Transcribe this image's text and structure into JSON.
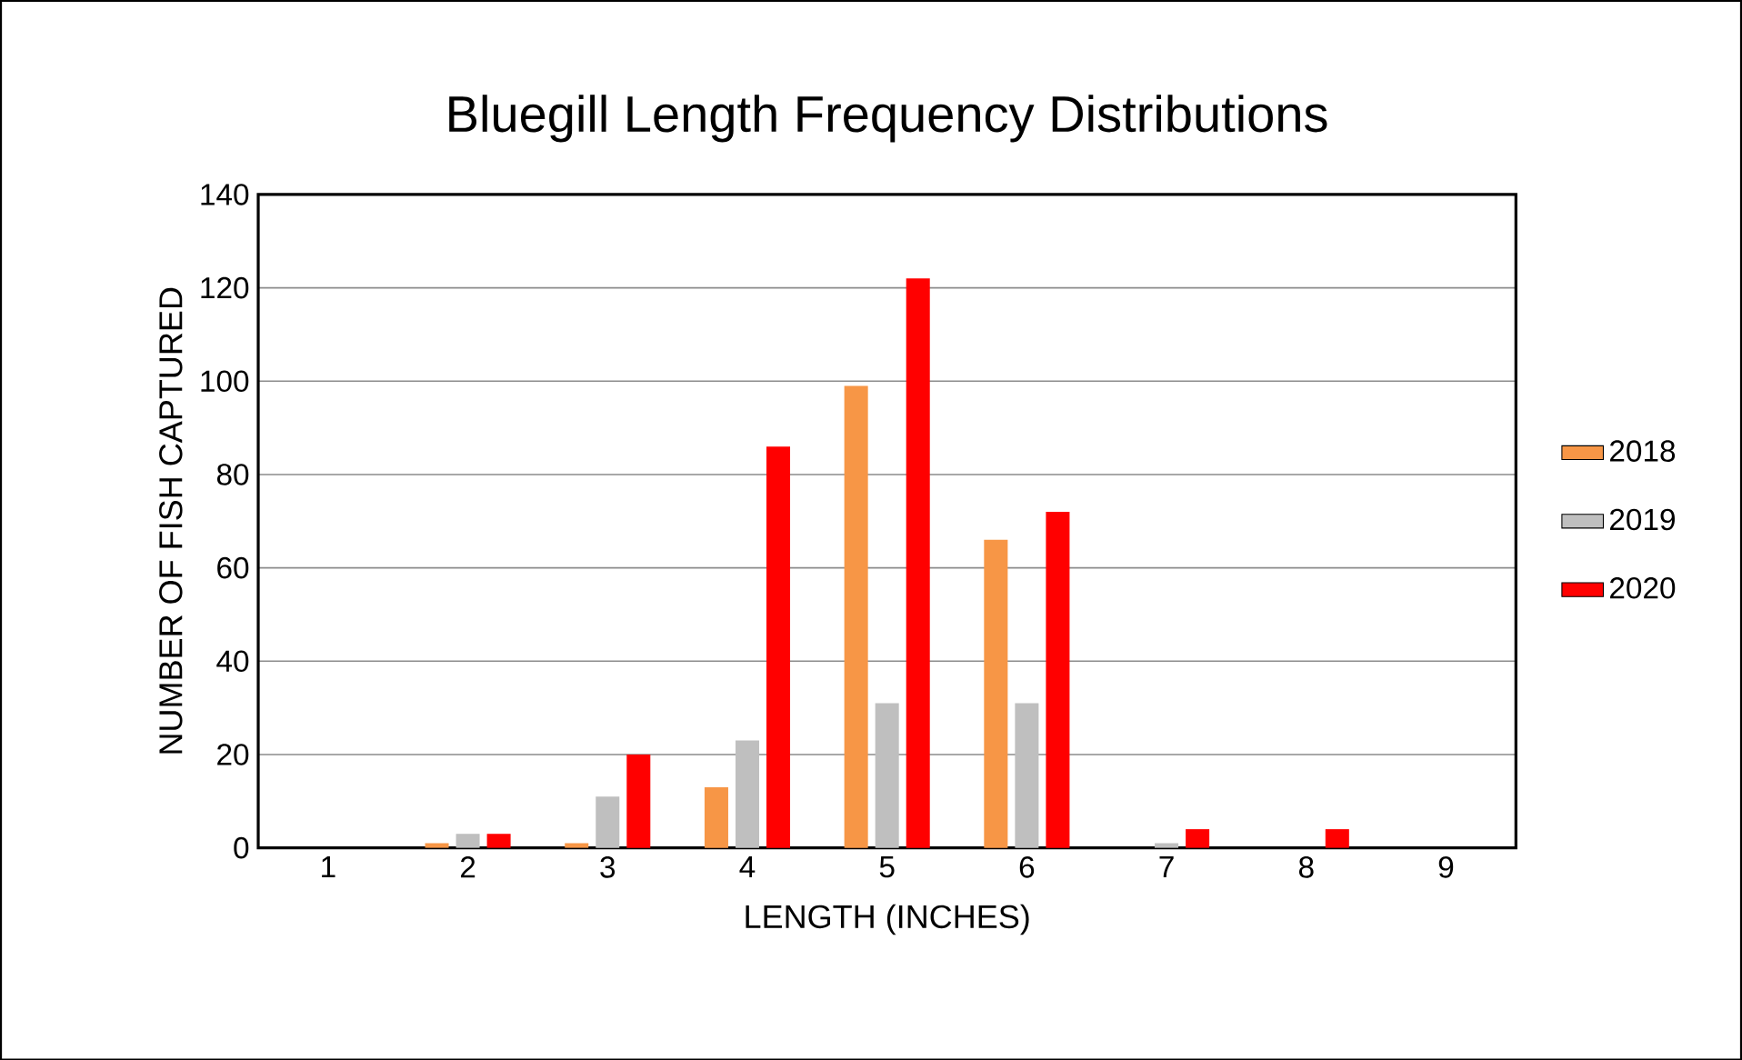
{
  "chart_data": {
    "type": "bar",
    "title": "Bluegill Length Frequency Distributions",
    "xlabel": "LENGTH (INCHES)",
    "ylabel": "NUMBER OF FISH CAPTURED",
    "categories": [
      "1",
      "2",
      "3",
      "4",
      "5",
      "6",
      "7",
      "8",
      "9"
    ],
    "series": [
      {
        "name": "2018",
        "color": "#f79646",
        "values": [
          0,
          1,
          1,
          13,
          99,
          66,
          0,
          0,
          0
        ]
      },
      {
        "name": "2019",
        "color": "#bfbfbf",
        "values": [
          0,
          3,
          11,
          23,
          31,
          31,
          1,
          0,
          0
        ]
      },
      {
        "name": "2020",
        "color": "#ff0000",
        "values": [
          0,
          3,
          20,
          86,
          122,
          72,
          4,
          4,
          0
        ]
      }
    ],
    "ylim": [
      0,
      140
    ],
    "yticks": [
      0,
      20,
      40,
      60,
      80,
      100,
      120,
      140
    ],
    "grid": "y",
    "legend": "right"
  }
}
